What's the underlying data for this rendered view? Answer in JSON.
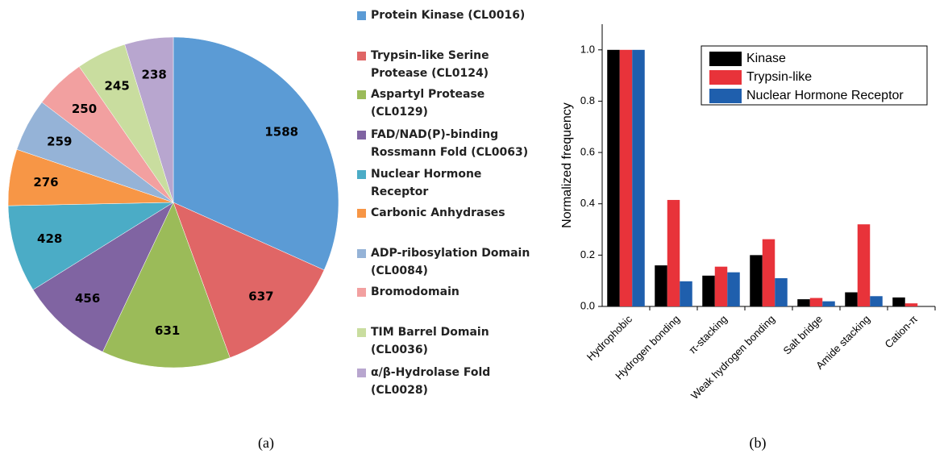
{
  "chart_data": [
    {
      "type": "pie",
      "caption": "(a)",
      "categories": [
        "Protein Kinase (CL0016)",
        "Trypsin-like Serine Protease (CL0124)",
        "Aspartyl Protease (CL0129)",
        "FAD/NAD(P)-binding Rossmann Fold (CL0063)",
        "Nuclear Hormone Receptor",
        "Carbonic Anhydrases",
        "ADP-ribosylation Domain (CL0084)",
        "Bromodomain",
        "TIM Barrel Domain (CL0036)",
        "α/β-Hydrolase Fold (CL0028)"
      ],
      "values": [
        1588,
        637,
        631,
        456,
        428,
        276,
        259,
        250,
        245,
        238
      ],
      "colors": [
        "#5b9bd5",
        "#e06666",
        "#9bbb59",
        "#8064a2",
        "#4bacc6",
        "#f79646",
        "#95b3d7",
        "#f2a0a0",
        "#c9dd9f",
        "#b8a6cf"
      ]
    },
    {
      "type": "bar",
      "caption": "(b)",
      "ylabel": "Normalized frequency",
      "categories": [
        "Hydrophobic",
        "Hydrogen bonding",
        "π-stacking",
        "Weak hydrogen bonding",
        "Salt bridge",
        "Amide stacking",
        "Cation-π"
      ],
      "series": [
        {
          "name": "Kinase",
          "color": "#000000",
          "values": [
            1.0,
            0.16,
            0.12,
            0.2,
            0.028,
            0.055,
            0.035
          ]
        },
        {
          "name": "Trypsin-like",
          "color": "#e8333a",
          "values": [
            1.0,
            0.415,
            0.155,
            0.262,
            0.033,
            0.32,
            0.012
          ]
        },
        {
          "name": "Nuclear Hormone Receptor",
          "color": "#1f5fad",
          "values": [
            1.0,
            0.098,
            0.133,
            0.11,
            0.02,
            0.04,
            0
          ]
        }
      ],
      "ylim": [
        0,
        1.1
      ],
      "yticks": [
        {
          "value": 0,
          "label": "0.0"
        },
        0.2,
        0.4,
        0.6,
        0.8,
        {
          "value": 1,
          "label": "1.0"
        }
      ],
      "legend": "upper right"
    }
  ]
}
